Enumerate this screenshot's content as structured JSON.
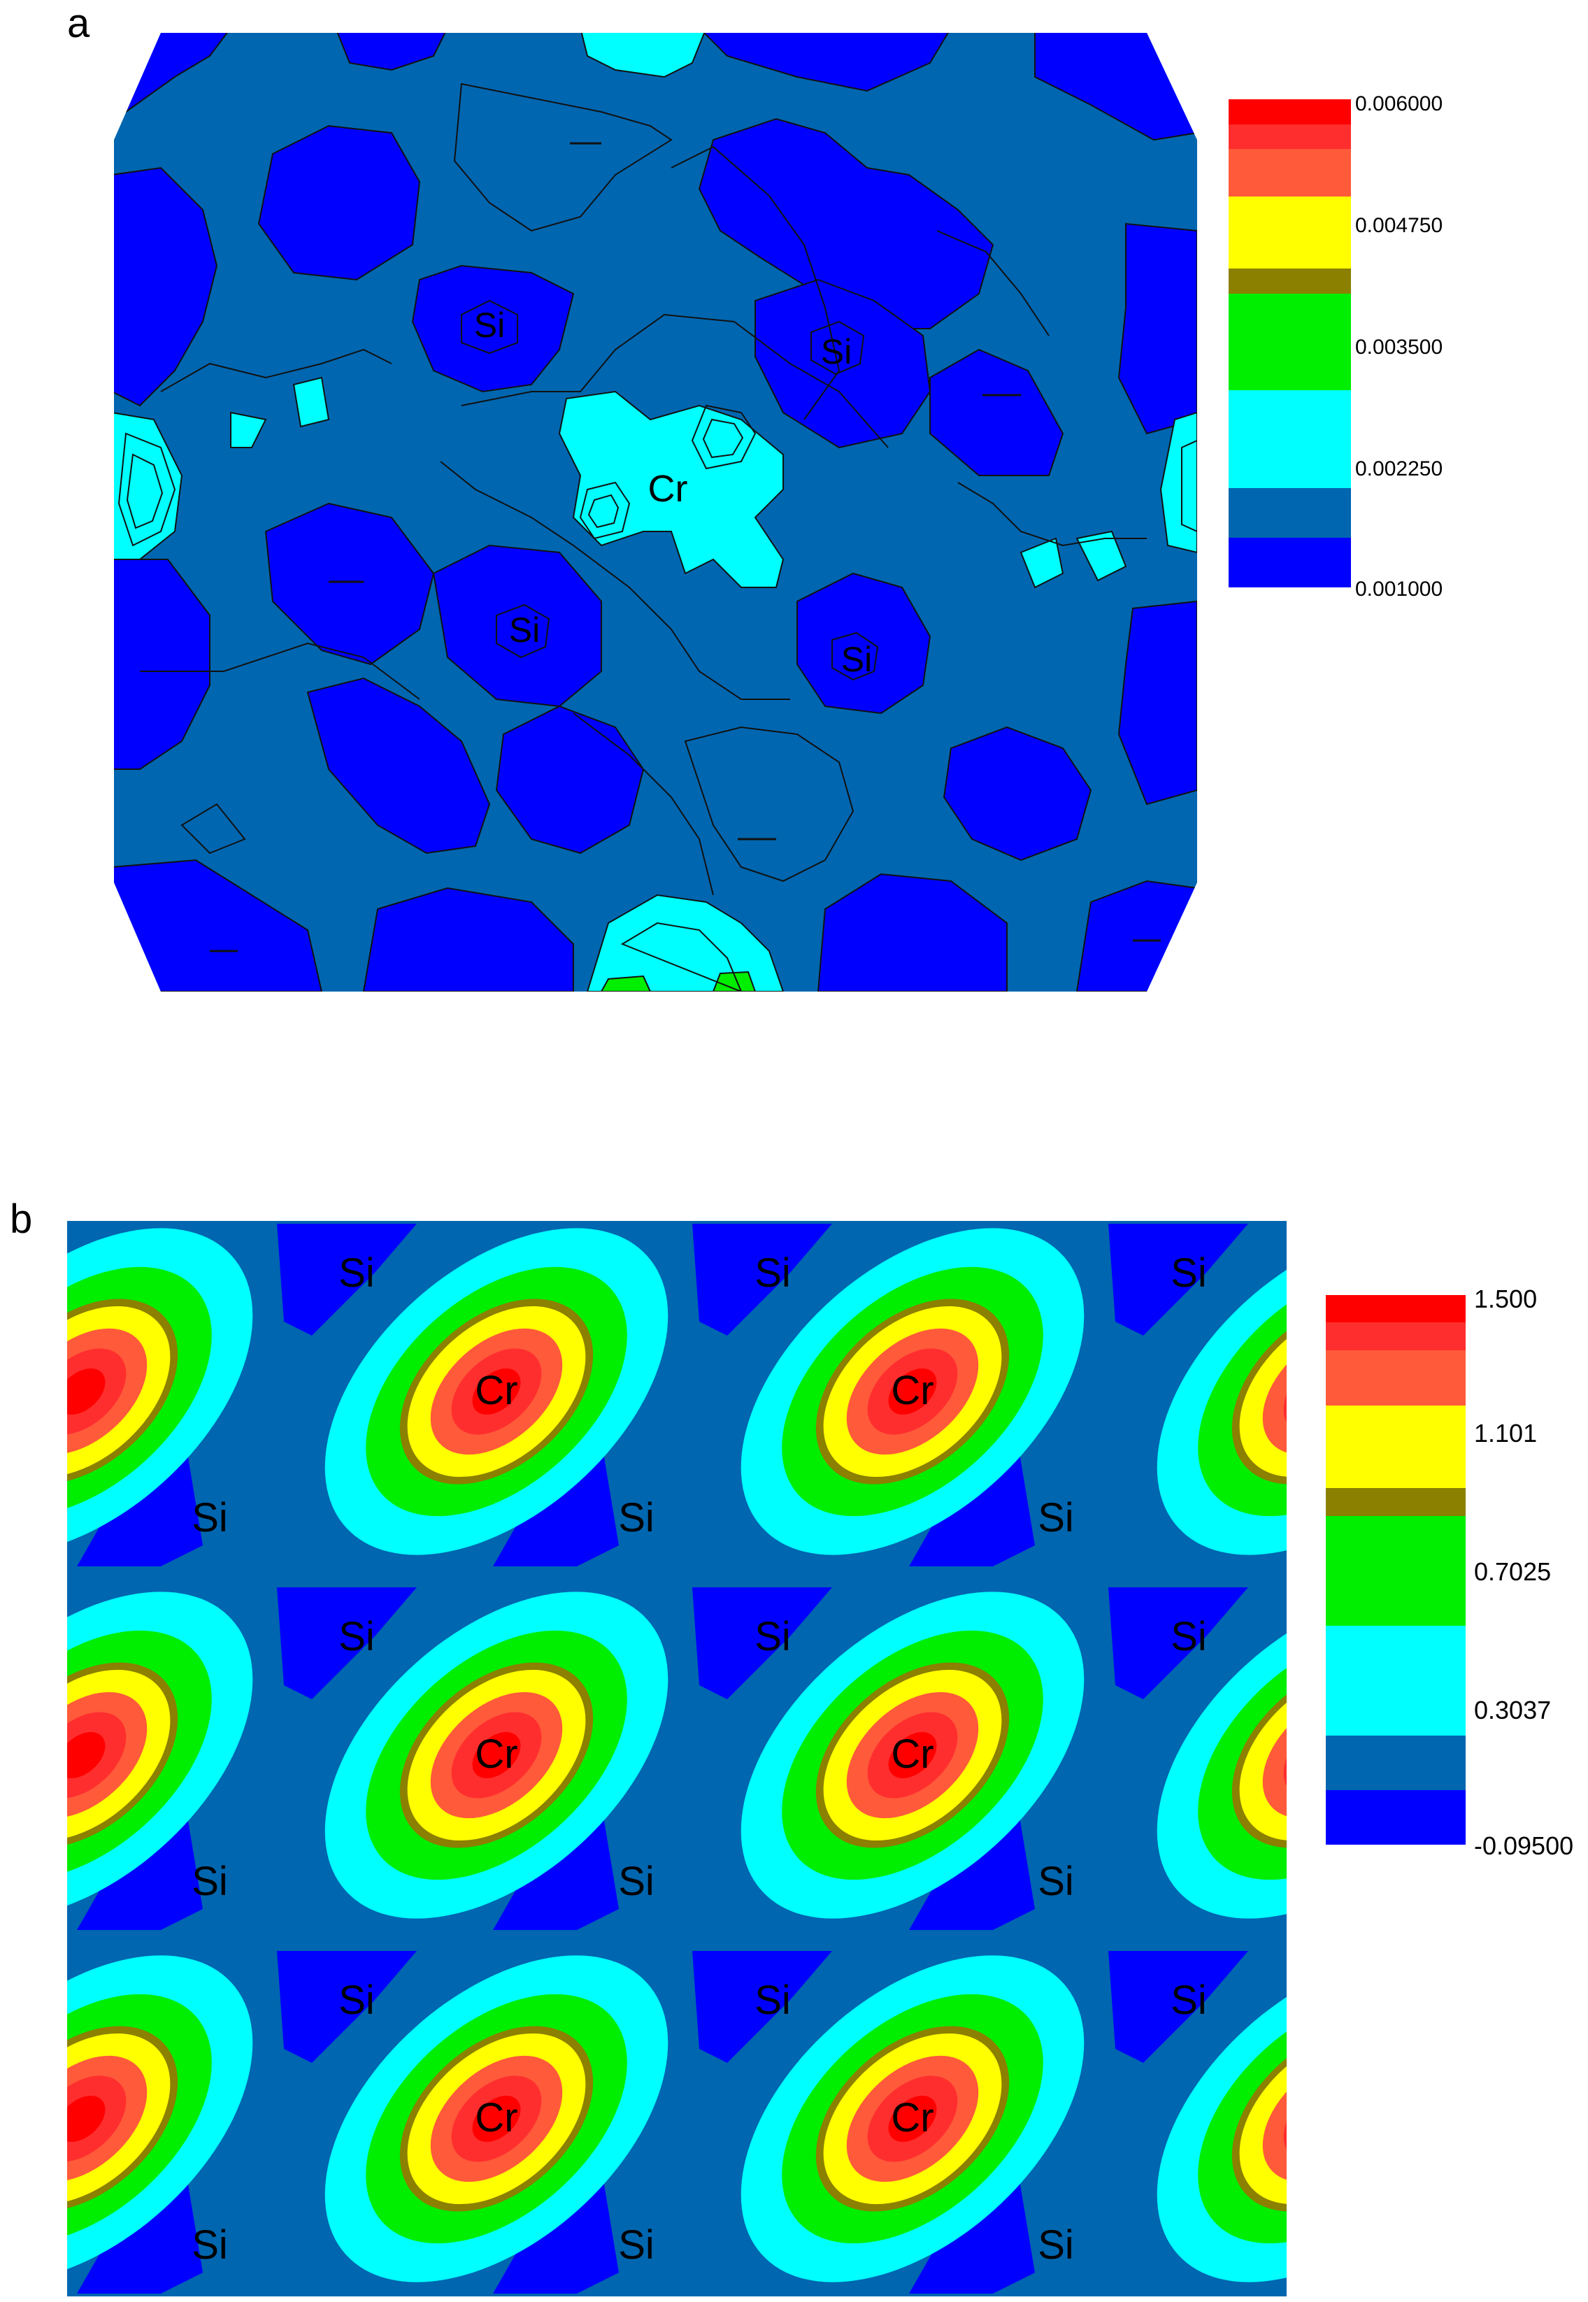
{
  "panels": [
    {
      "label": "a"
    },
    {
      "label": "b"
    }
  ],
  "colors": {
    "level_1": "#0000FF",
    "level_2": "#0066B0",
    "level_3": "#00FFFF",
    "level_4": "#00EE00",
    "level_5": "#8B8000",
    "level_6": "#FFFF00",
    "level_7": "#FF5A3A",
    "level_8": "#FF2E2E",
    "level_9": "#FF0000"
  },
  "chart_data": [
    {
      "type": "heatmap",
      "panel": "a",
      "title": "",
      "colorbar": {
        "ticks": [
          "0.006000",
          "0.004750",
          "0.003500",
          "0.002250",
          "0.001000"
        ],
        "range": [
          0.001,
          0.006
        ],
        "placement": "right"
      },
      "atom_labels": [
        "Si",
        "Si",
        "Cr",
        "Si",
        "Si"
      ]
    },
    {
      "type": "heatmap",
      "panel": "b",
      "title": "",
      "colorbar": {
        "ticks": [
          "1.500",
          "1.101",
          "0.7025",
          "0.3037",
          "-0.09500"
        ],
        "range": [
          -0.095,
          1.5
        ],
        "placement": "right"
      },
      "atom_labels": {
        "Cr": "Cr",
        "Si": "Si"
      }
    }
  ]
}
